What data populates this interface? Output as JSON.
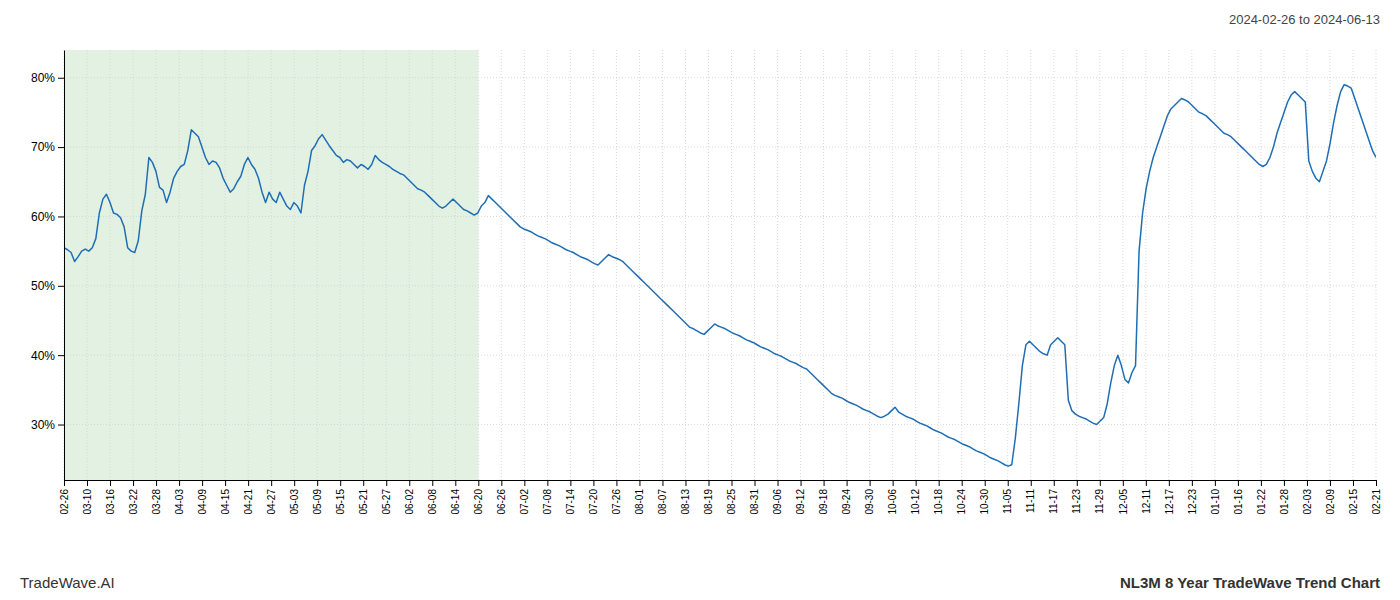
{
  "chart_data": {
    "type": "line",
    "title": "NL3M 8 Year TradeWave Trend Chart",
    "subtitle": "2024-02-26 to 2024-06-13",
    "annotations": [
      "TradeWave.AI"
    ],
    "color": "#1f6eb5",
    "grid": true,
    "xlim": [
      0,
      371
    ],
    "xticks": [
      {
        "value": 0,
        "label": "02-26"
      },
      {
        "value": 6.5088,
        "label": "03-10"
      },
      {
        "value": 13.0175,
        "label": "03-16"
      },
      {
        "value": 19.5263,
        "label": "03-22"
      },
      {
        "value": 26.0351,
        "label": "03-28"
      },
      {
        "value": 32.5439,
        "label": "04-03"
      },
      {
        "value": 39.0526,
        "label": "04-09"
      },
      {
        "value": 45.5614,
        "label": "04-15"
      },
      {
        "value": 52.0702,
        "label": "04-21"
      },
      {
        "value": 58.5789,
        "label": "04-27"
      },
      {
        "value": 65.0877,
        "label": "05-03"
      },
      {
        "value": 71.5965,
        "label": "05-09"
      },
      {
        "value": 78.1053,
        "label": "05-15"
      },
      {
        "value": 84.614,
        "label": "05-21"
      },
      {
        "value": 91.1228,
        "label": "05-27"
      },
      {
        "value": 97.6316,
        "label": "06-02"
      },
      {
        "value": 104.1404,
        "label": "06-08"
      },
      {
        "value": 110.6491,
        "label": "06-14"
      },
      {
        "value": 117.1579,
        "label": "06-20"
      },
      {
        "value": 123.6667,
        "label": "06-26"
      },
      {
        "value": 130.1754,
        "label": "07-02"
      },
      {
        "value": 136.6842,
        "label": "07-08"
      },
      {
        "value": 143.193,
        "label": "07-14"
      },
      {
        "value": 149.7018,
        "label": "07-20"
      },
      {
        "value": 156.2105,
        "label": "07-26"
      },
      {
        "value": 162.7193,
        "label": "08-01"
      },
      {
        "value": 169.2281,
        "label": "08-07"
      },
      {
        "value": 175.7368,
        "label": "08-13"
      },
      {
        "value": 182.2456,
        "label": "08-19"
      },
      {
        "value": 188.7544,
        "label": "08-25"
      },
      {
        "value": 195.2632,
        "label": "08-31"
      },
      {
        "value": 201.7719,
        "label": "09-06"
      },
      {
        "value": 208.2807,
        "label": "09-12"
      },
      {
        "value": 214.7895,
        "label": "09-18"
      },
      {
        "value": 221.2982,
        "label": "09-24"
      },
      {
        "value": 227.807,
        "label": "09-30"
      },
      {
        "value": 234.3158,
        "label": "10-06"
      },
      {
        "value": 240.8246,
        "label": "10-12"
      },
      {
        "value": 247.3333,
        "label": "10-18"
      },
      {
        "value": 253.8421,
        "label": "10-24"
      },
      {
        "value": 260.3509,
        "label": "10-30"
      },
      {
        "value": 266.8596,
        "label": "11-05"
      },
      {
        "value": 273.3684,
        "label": "11-11"
      },
      {
        "value": 279.8772,
        "label": "11-17"
      },
      {
        "value": 286.386,
        "label": "11-23"
      },
      {
        "value": 292.8947,
        "label": "11-29"
      },
      {
        "value": 299.4035,
        "label": "12-05"
      },
      {
        "value": 305.9123,
        "label": "12-11"
      },
      {
        "value": 312.4211,
        "label": "12-17"
      },
      {
        "value": 318.9298,
        "label": "12-23"
      },
      {
        "value": 325.4386,
        "label": "01-10"
      },
      {
        "value": 331.9474,
        "label": "01-16"
      },
      {
        "value": 338.4561,
        "label": "01-22"
      },
      {
        "value": 344.9649,
        "label": "01-28"
      },
      {
        "value": 351.4737,
        "label": "02-03"
      },
      {
        "value": 357.9825,
        "label": "02-09"
      },
      {
        "value": 364.4912,
        "label": "02-15"
      },
      {
        "value": 371,
        "label": "02-21"
      }
    ],
    "ylim": [
      22,
      84
    ],
    "yticks": [
      {
        "value": 30,
        "label": "30%"
      },
      {
        "value": 40,
        "label": "40%"
      },
      {
        "value": 50,
        "label": "50%"
      },
      {
        "value": 60,
        "label": "60%"
      },
      {
        "value": 70,
        "label": "70%"
      },
      {
        "value": 80,
        "label": "80%"
      }
    ],
    "shaded_region": {
      "x0": 0,
      "x1": 117.1579,
      "color": "#cce5cc"
    },
    "values": [
      55.5,
      55.2,
      54.8,
      53.5,
      54.2,
      55.0,
      55.3,
      55.0,
      55.5,
      56.8,
      60.5,
      62.5,
      63.2,
      62.0,
      60.5,
      60.3,
      59.8,
      58.5,
      55.5,
      55.0,
      54.8,
      56.5,
      60.8,
      63.2,
      68.5,
      67.8,
      66.5,
      64.2,
      63.8,
      62.0,
      63.5,
      65.5,
      66.5,
      67.2,
      67.5,
      69.5,
      72.5,
      72.0,
      71.5,
      70.0,
      68.5,
      67.5,
      68.0,
      67.8,
      67.0,
      65.5,
      64.5,
      63.5,
      64.0,
      65.0,
      65.8,
      67.5,
      68.5,
      67.5,
      66.8,
      65.5,
      63.5,
      62.0,
      63.5,
      62.5,
      62.0,
      63.5,
      62.5,
      61.5,
      61.0,
      62.0,
      61.5,
      60.5,
      64.5,
      66.5,
      69.5,
      70.2,
      71.2,
      71.8,
      71.0,
      70.2,
      69.5,
      68.8,
      68.5,
      67.8,
      68.2,
      68.0,
      67.5,
      67.0,
      67.5,
      67.2,
      66.8,
      67.5,
      68.8,
      68.2,
      67.8,
      67.5,
      67.2,
      66.8,
      66.5,
      66.2,
      66.0,
      65.5,
      65.0,
      64.5,
      64.0,
      63.8,
      63.5,
      63.0,
      62.5,
      62.0,
      61.5,
      61.2,
      61.5,
      62.0,
      62.5,
      62.0,
      61.5,
      61.0,
      60.8,
      60.5,
      60.2,
      60.5,
      61.5,
      62.0,
      63.0,
      62.5,
      62.0,
      61.5,
      61.0,
      60.5,
      60.0,
      59.5,
      59.0,
      58.5,
      58.2,
      58.0,
      57.8,
      57.5,
      57.2,
      57.0,
      56.8,
      56.5,
      56.2,
      56.0,
      55.8,
      55.5,
      55.2,
      55.0,
      54.8,
      54.5,
      54.2,
      54.0,
      53.8,
      53.5,
      53.2,
      53.0,
      53.5,
      54.0,
      54.5,
      54.2,
      54.0,
      53.8,
      53.5,
      53.0,
      52.5,
      52.0,
      51.5,
      51.0,
      50.5,
      50.0,
      49.5,
      49.0,
      48.5,
      48.0,
      47.5,
      47.0,
      46.5,
      46.0,
      45.5,
      45.0,
      44.5,
      44.0,
      43.8,
      43.5,
      43.2,
      43.0,
      43.5,
      44.0,
      44.5,
      44.2,
      44.0,
      43.8,
      43.5,
      43.2,
      43.0,
      42.8,
      42.5,
      42.2,
      42.0,
      41.8,
      41.5,
      41.2,
      41.0,
      40.8,
      40.5,
      40.2,
      40.0,
      39.8,
      39.5,
      39.2,
      39.0,
      38.8,
      38.5,
      38.2,
      38.0,
      37.5,
      37.0,
      36.5,
      36.0,
      35.5,
      35.0,
      34.5,
      34.2,
      34.0,
      33.8,
      33.5,
      33.2,
      33.0,
      32.8,
      32.5,
      32.2,
      32.0,
      31.8,
      31.5,
      31.2,
      31.0,
      31.2,
      31.5,
      32.0,
      32.5,
      31.8,
      31.5,
      31.2,
      31.0,
      30.8,
      30.5,
      30.2,
      30.0,
      29.8,
      29.5,
      29.2,
      29.0,
      28.8,
      28.5,
      28.2,
      28.0,
      27.8,
      27.5,
      27.2,
      27.0,
      26.8,
      26.5,
      26.2,
      26.0,
      25.8,
      25.5,
      25.2,
      25.0,
      24.8,
      24.5,
      24.2,
      24.0,
      24.2,
      28.0,
      33.0,
      38.5,
      41.5,
      42.0,
      41.5,
      41.0,
      40.5,
      40.2,
      40.0,
      41.5,
      42.0,
      42.5,
      42.0,
      41.5,
      33.5,
      32.0,
      31.5,
      31.2,
      31.0,
      30.8,
      30.5,
      30.2,
      30.0,
      30.5,
      31.0,
      33.0,
      36.0,
      38.5,
      40.0,
      38.5,
      36.5,
      36.0,
      37.5,
      38.5,
      55.0,
      60.5,
      64.0,
      66.5,
      68.5,
      70.0,
      71.5,
      73.0,
      74.5,
      75.5,
      76.0,
      76.5,
      77.0,
      76.8,
      76.5,
      76.0,
      75.5,
      75.0,
      74.8,
      74.5,
      74.0,
      73.5,
      73.0,
      72.5,
      72.0,
      71.8,
      71.5,
      71.0,
      70.5,
      70.0,
      69.5,
      69.0,
      68.5,
      68.0,
      67.5,
      67.2,
      67.5,
      68.5,
      70.0,
      72.0,
      73.5,
      75.0,
      76.5,
      77.5,
      78.0,
      77.5,
      77.0,
      76.5,
      68.0,
      66.5,
      65.5,
      65.0,
      66.5,
      68.0,
      70.5,
      73.5,
      76.0,
      78.0,
      79.0,
      78.8,
      78.5,
      77.0,
      75.5,
      74.0,
      72.5,
      71.0,
      69.5,
      68.5
    ]
  }
}
